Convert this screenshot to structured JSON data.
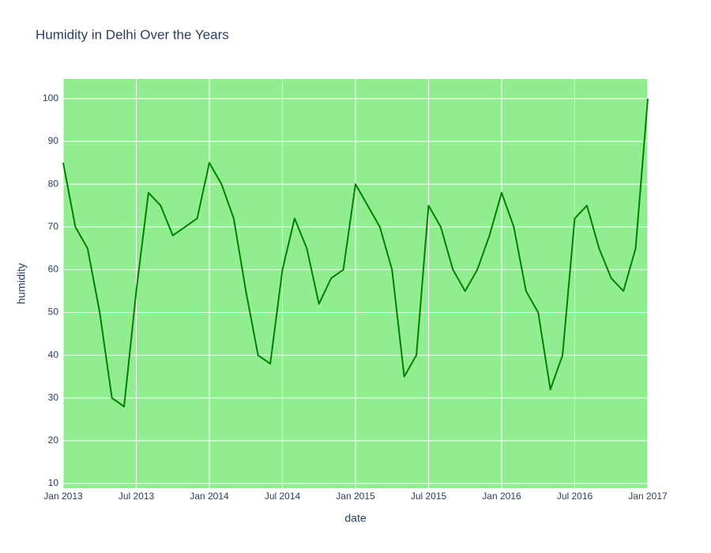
{
  "chart_data": {
    "type": "line",
    "title": "Humidity in Delhi Over the Years",
    "x_label": "date",
    "y_label": "humidity",
    "x": [
      "2013-01",
      "2013-02",
      "2013-03",
      "2013-04",
      "2013-05",
      "2013-06",
      "2013-07",
      "2013-08",
      "2013-09",
      "2013-10",
      "2013-11",
      "2013-12",
      "2014-01",
      "2014-02",
      "2014-03",
      "2014-04",
      "2014-05",
      "2014-06",
      "2014-07",
      "2014-08",
      "2014-09",
      "2014-10",
      "2014-11",
      "2014-12",
      "2015-01",
      "2015-02",
      "2015-03",
      "2015-04",
      "2015-05",
      "2015-06",
      "2015-07",
      "2015-08",
      "2015-09",
      "2015-10",
      "2015-11",
      "2015-12",
      "2016-01",
      "2016-02",
      "2016-03",
      "2016-04",
      "2016-05",
      "2016-06",
      "2016-07",
      "2016-08",
      "2016-09",
      "2016-10",
      "2016-11",
      "2016-12",
      "2017-01"
    ],
    "series": [
      {
        "name": "humidity",
        "color": "#008000",
        "values": [
          85,
          70,
          65,
          50,
          30,
          28,
          55,
          78,
          75,
          68,
          70,
          72,
          85,
          80,
          72,
          55,
          40,
          38,
          60,
          72,
          65,
          52,
          58,
          60,
          80,
          75,
          70,
          60,
          35,
          40,
          75,
          70,
          60,
          55,
          60,
          68,
          78,
          70,
          55,
          50,
          32,
          40,
          72,
          75,
          65,
          58,
          55,
          65,
          100
        ]
      }
    ],
    "xlim": [
      "2013-01",
      "2017-01"
    ],
    "xticks": [
      {
        "value": "2013-01",
        "label": "Jan 2013"
      },
      {
        "value": "2013-07",
        "label": "Jul 2013"
      },
      {
        "value": "2014-01",
        "label": "Jan 2014"
      },
      {
        "value": "2014-07",
        "label": "Jul 2014"
      },
      {
        "value": "2015-01",
        "label": "Jan 2015"
      },
      {
        "value": "2015-07",
        "label": "Jul 2015"
      },
      {
        "value": "2016-01",
        "label": "Jan 2016"
      },
      {
        "value": "2016-07",
        "label": "Jul 2016"
      },
      {
        "value": "2017-01",
        "label": "Jan 2017"
      }
    ],
    "ylim": [
      8.9,
      104.6
    ],
    "yticks": [
      10,
      20,
      30,
      40,
      50,
      60,
      70,
      80,
      90,
      100
    ],
    "grid": true,
    "plot_background": "#90ee90"
  }
}
